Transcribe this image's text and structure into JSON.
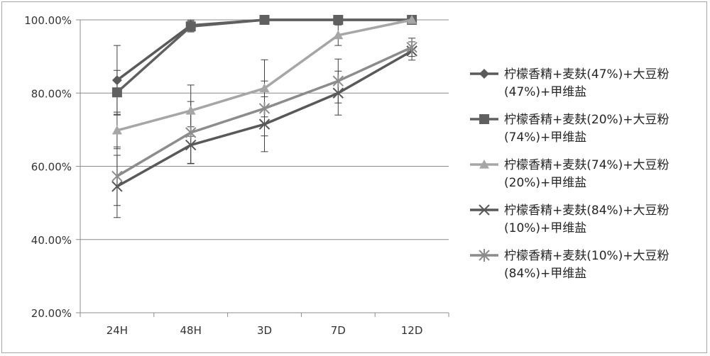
{
  "chart_data": {
    "type": "line",
    "title": "",
    "xlabel": "",
    "ylabel": "",
    "categories": [
      "24H",
      "48H",
      "3D",
      "7D",
      "12D"
    ],
    "y_ticks": [
      "20.00%",
      "40.00%",
      "60.00%",
      "80.00%",
      "100.00%"
    ],
    "ylim": [
      20,
      100
    ],
    "grid": "horizontal",
    "legend_position": "right",
    "series": [
      {
        "name_line1": "柠檬香精+麦麸(47%)+大豆粉",
        "name_line2": "(47%)+甲维盐",
        "marker": "diamond",
        "color": "#5a5a5a",
        "values": [
          83.5,
          98.5,
          100,
          100,
          100
        ],
        "error": [
          9.5,
          1.5,
          0,
          0,
          0
        ]
      },
      {
        "name_line1": "柠檬香精+麦麸(20%)+大豆粉",
        "name_line2": "(74%)+甲维盐",
        "marker": "square",
        "color": "#606060",
        "values": [
          80.2,
          98.2,
          100,
          100,
          100
        ],
        "error": [
          6,
          1.5,
          0,
          0,
          0
        ]
      },
      {
        "name_line1": "柠檬香精+麦麸(74%)+大豆粉",
        "name_line2": "(20%)+甲维盐",
        "marker": "triangle",
        "color": "#a6a6a6",
        "values": [
          69.8,
          75.2,
          81.3,
          95.8,
          100
        ],
        "error": [
          5,
          7,
          7.8,
          2.8,
          0
        ]
      },
      {
        "name_line1": "柠檬香精+麦麸(84%)+大豆粉",
        "name_line2": "(10%)+甲维盐",
        "marker": "x",
        "color": "#595959",
        "values": [
          54.5,
          65.8,
          71.5,
          80,
          91.5
        ],
        "error": [
          8.5,
          5,
          7.5,
          6,
          2.5
        ]
      },
      {
        "name_line1": "柠檬香精+麦麸(10%)+大豆粉",
        "name_line2": "(84%)+甲维盐",
        "marker": "asterisk",
        "color": "#8c8c8c",
        "values": [
          57.3,
          69.2,
          75.8,
          83.3,
          92.5
        ],
        "error": [
          8,
          8.5,
          7.5,
          6,
          2.5
        ]
      }
    ]
  }
}
